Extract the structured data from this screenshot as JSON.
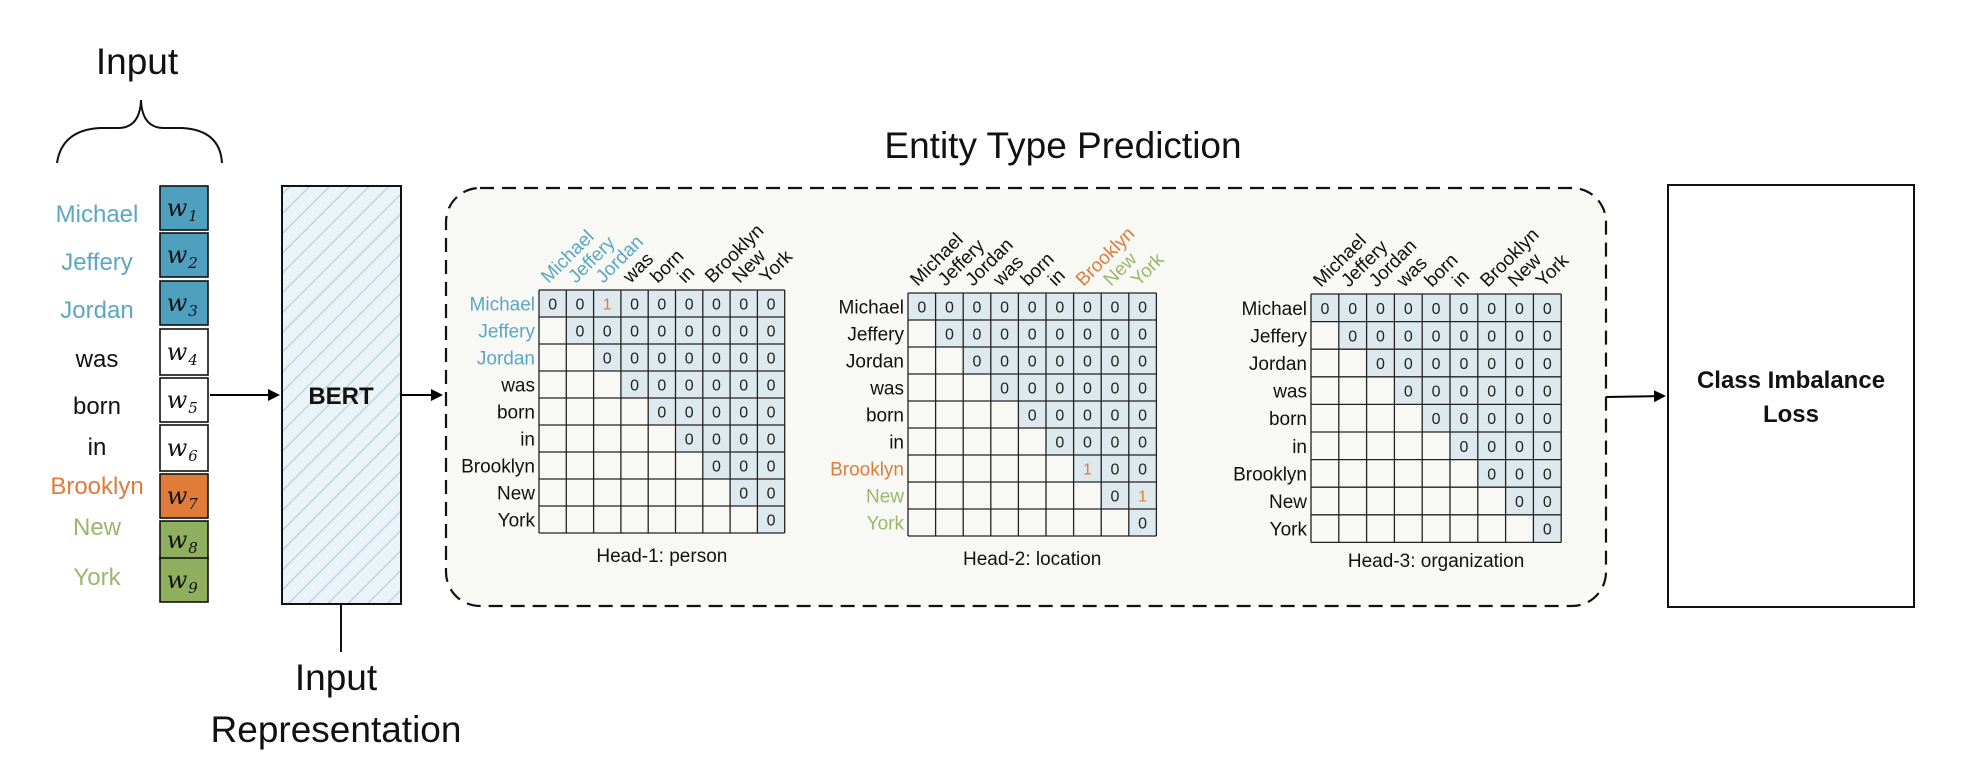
{
  "input": {
    "title": "Input",
    "words": [
      {
        "text": "Michael",
        "token": "w",
        "sub": "1",
        "color": "#5ba7c4",
        "fill": "#4f9fbf"
      },
      {
        "text": "Jeffery",
        "token": "w",
        "sub": "2",
        "color": "#5ba7c4",
        "fill": "#4f9fbf"
      },
      {
        "text": "Jordan",
        "token": "w",
        "sub": "3",
        "color": "#5ba7c4",
        "fill": "#4f9fbf"
      },
      {
        "text": "was",
        "token": "w",
        "sub": "4",
        "color": "#111111",
        "fill": "#ffffff"
      },
      {
        "text": "born",
        "token": "w",
        "sub": "5",
        "color": "#111111",
        "fill": "#ffffff"
      },
      {
        "text": "in",
        "token": "w",
        "sub": "6",
        "color": "#111111",
        "fill": "#ffffff"
      },
      {
        "text": "Brooklyn",
        "token": "w",
        "sub": "7",
        "color": "#e07b39",
        "fill": "#e07b39"
      },
      {
        "text": "New",
        "token": "w",
        "sub": "8",
        "color": "#9bb86a",
        "fill": "#8fae5e"
      },
      {
        "text": "York",
        "token": "w",
        "sub": "9",
        "color": "#9bb86a",
        "fill": "#8fae5e"
      }
    ]
  },
  "bert": {
    "label": "BERT"
  },
  "representation": {
    "line1": "Input",
    "line2": "Representation"
  },
  "prediction": {
    "title": "Entity Type Prediction"
  },
  "loss": {
    "line1": "Class Imbalance",
    "line2": "Loss"
  },
  "colors": {
    "person": "#5ba7c4",
    "location": "#e07b39",
    "org": "#9bb86a",
    "one": "#e07b39",
    "cellFill": "#dde9ee",
    "panelFill": "#f8f9f4"
  },
  "tokens": [
    "Michael",
    "Jeffery",
    "Jordan",
    "was",
    "born",
    "in",
    "Brooklyn",
    "New",
    "York"
  ],
  "heads": [
    {
      "caption": "Head-1: person",
      "highlight": [
        0,
        1,
        2
      ],
      "highlight_color": "#5ba7c4",
      "ones": [
        [
          0,
          2
        ]
      ]
    },
    {
      "caption": "Head-2: location",
      "highlight": [
        6,
        7,
        8
      ],
      "highlight_colors": [
        "#e07b39",
        "#9bb86a",
        "#9bb86a"
      ],
      "ones": [
        [
          6,
          6
        ],
        [
          7,
          8
        ]
      ]
    },
    {
      "caption": "Head-3: organization",
      "highlight": [],
      "ones": []
    }
  ]
}
